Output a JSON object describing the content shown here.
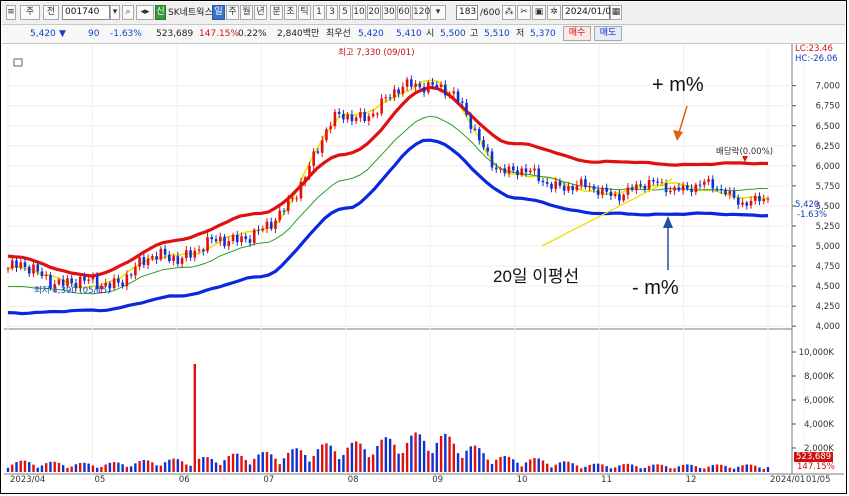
{
  "toolbar": {
    "chart_kind_btn": "주",
    "period_btn": "전",
    "code": "001740",
    "stock_badge": "신",
    "stock_name": "SK네트웍스",
    "period_tabs": [
      "일",
      "주",
      "월",
      "년",
      "분",
      "초",
      "틱"
    ],
    "minute_tabs": [
      "1",
      "3",
      "5",
      "10",
      "20",
      "30",
      "60",
      "120"
    ],
    "count_value": "183",
    "count_max": "/600",
    "date": "2024/01/05"
  },
  "quote": {
    "price": "5,420",
    "arrow": "▼",
    "change": "90",
    "change_pct": "-1.63%",
    "volume": "523,689",
    "volume_ratio": "147.15%",
    "turnover_ratio": "0.22%",
    "amount": "2,840백만",
    "best_label": "최우선",
    "best_value": "5,420",
    "best_ask": "5,410",
    "open_label": "시",
    "open": "5,500",
    "high_label": "고",
    "high": "5,510",
    "low_label": "저",
    "low": "5,370",
    "buy_label": "매수",
    "sell_label": "매도"
  },
  "annotations": {
    "plus_pct": "+  m%",
    "minus_pct": "-  m%",
    "ma20_label": "20일 이평선",
    "high_mark": "최고 7,330 (09/01)",
    "low_mark": "최저 4,390 (05/15)",
    "dividend": "배당락(0.00%)",
    "lc_label": "LC:23.46",
    "hc_label": "HC:-26.06",
    "price_tag": "5,420",
    "pct_tag": "-1.63%",
    "vol_tag": "523,689",
    "vol_pct_tag": "147.15%"
  },
  "colors": {
    "up": "#e01010",
    "down": "#1030d0",
    "envelope_upper": "#e01010",
    "envelope_lower": "#0a28e0",
    "ma_yellow": "#f0e000",
    "ma_green": "#2aa02a",
    "ma_gray": "#999999",
    "ma_purple": "#8a40c0",
    "annotation_orange": "#e06010",
    "annotation_blue": "#2050a0"
  },
  "chart_data": {
    "type": "line",
    "title": "",
    "price_axis": [
      "7,000",
      "6,750",
      "6,500",
      "6,250",
      "6,000",
      "5,750",
      "5,500",
      "5,250",
      "5,000",
      "4,750",
      "4,500",
      "4,250",
      "4,000"
    ],
    "price_ylim": [
      3990,
      7420
    ],
    "volume_axis": [
      "10,000K",
      "8,000K",
      "6,000K",
      "4,000K",
      "2,000K"
    ],
    "volume_ylim": [
      0,
      11500000
    ],
    "x_labels": [
      "2023/04",
      "05",
      "06",
      "07",
      "08",
      "09",
      "10",
      "11",
      "12",
      "2024/01",
      "01/05"
    ],
    "x": [
      "2023/04",
      "05",
      "06",
      "07",
      "08",
      "09",
      "10",
      "11",
      "12",
      "2024/01"
    ],
    "series": [
      {
        "name": "",
        "values": [
          4720,
          4510,
          4900,
          5180,
          6600,
          7050,
          5900,
          5680,
          5760,
          5560
        ]
      },
      {
        "name": "",
        "values": [
          4870,
          4630,
          5080,
          5420,
          6150,
          6970,
          6270,
          6050,
          6020,
          6030
        ]
      },
      {
        "name": "",
        "values": [
          4170,
          4190,
          4370,
          4620,
          5480,
          6330,
          5600,
          5400,
          5400,
          5390
        ]
      },
      {
        "name": "",
        "values": [
          4500,
          4410,
          4720,
          5020,
          5820,
          6620,
          5920,
          5720,
          5700,
          5710
        ]
      }
    ],
    "volume_values": [
      700000,
      550000,
      800000,
      1200000,
      1800000,
      2400000,
      900000,
      500000,
      450000,
      450000
    ]
  }
}
